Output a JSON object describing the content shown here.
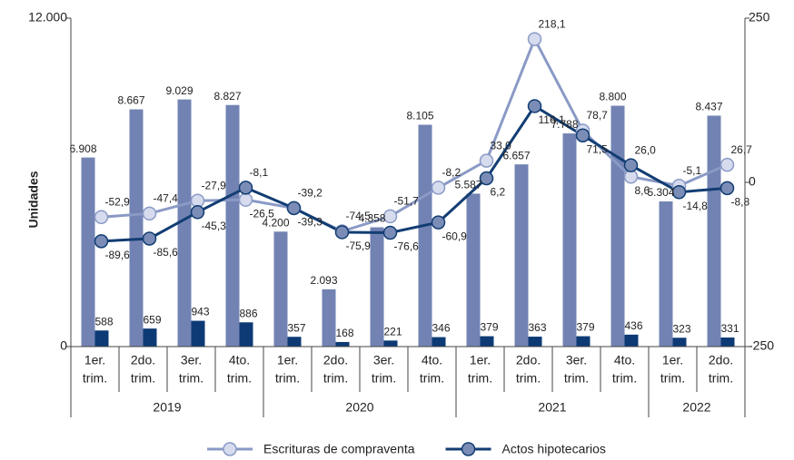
{
  "chart_data": {
    "type": "bar-line",
    "y_axis_label": "Unidades",
    "groups": [
      {
        "label": "2019",
        "categories": [
          [
            "1er.",
            "trim."
          ],
          [
            "2do.",
            "trim."
          ],
          [
            "3er.",
            "trim."
          ],
          [
            "4to.",
            "trim."
          ]
        ]
      },
      {
        "label": "2020",
        "categories": [
          [
            "1er.",
            "trim."
          ],
          [
            "2do.",
            "trim."
          ],
          [
            "3er.",
            "trim."
          ],
          [
            "4to.",
            "trim."
          ]
        ]
      },
      {
        "label": "2021",
        "categories": [
          [
            "1er.",
            "trim."
          ],
          [
            "2do.",
            "trim."
          ],
          [
            "3er.",
            "trim."
          ],
          [
            "4to.",
            "trim."
          ]
        ]
      },
      {
        "label": "2022",
        "categories": [
          [
            "1er.",
            "trim."
          ],
          [
            "2do.",
            "trim."
          ]
        ]
      }
    ],
    "ylim": [
      0,
      12000
    ],
    "yticks": [
      0,
      {
        "value": 12000,
        "label": "12.000"
      }
    ],
    "y2lim": [
      -250,
      250
    ],
    "y2ticks": [
      -250,
      0,
      250
    ],
    "bar_series": [
      {
        "color": "#7283b3",
        "values": [
          6908,
          8667,
          9029,
          8827,
          4200,
          2093,
          4358,
          8105,
          5587,
          6657,
          7788,
          8800,
          5304,
          8437
        ],
        "value_labels": [
          "6.908",
          "8.667",
          "9.029",
          "8.827",
          "4.200",
          "2.093",
          "4.358",
          "8.105",
          "5.587",
          "6.657",
          "7.788",
          "8.800",
          "5.304",
          "8.437"
        ]
      },
      {
        "color": "#0d3a75",
        "values": [
          588,
          659,
          943,
          886,
          357,
          168,
          221,
          346,
          379,
          363,
          379,
          436,
          323,
          331
        ]
      }
    ],
    "series": [
      {
        "name": "Escrituras de compraventa",
        "color": "#8a9ac6",
        "marker_color": "#d6dcee",
        "axis": "y2",
        "values": [
          -52.9,
          -47.4,
          -27.9,
          -26.5,
          -39.3,
          -74.5,
          -51.7,
          -8.2,
          33.0,
          218.1,
          78.7,
          8.6,
          -5.1,
          26.7
        ],
        "value_labels": [
          "-52,9",
          "-47,4",
          "-27,9",
          "-26,5",
          "-39,3",
          "-74,5",
          "-51,7",
          "-8,2",
          "33,0",
          "218,1",
          "78,7",
          "8,6",
          "-5,1",
          "26,7"
        ]
      },
      {
        "name": "Actos hipotecarios",
        "color": "#123d73",
        "marker_color": "#7b8db7",
        "axis": "y2",
        "values": [
          -89.6,
          -85.6,
          -45.3,
          -8.1,
          -39.2,
          -75.9,
          -76.6,
          -60.9,
          6.2,
          116.1,
          71.5,
          26.0,
          -14.8,
          -8.8
        ],
        "value_labels": [
          "-89,6",
          "-85,6",
          "-45,3",
          "-8,1",
          "-39,2",
          "-75,9",
          "-76,6",
          "-60,9",
          "6,2",
          "116,1",
          "71,5",
          "26,0",
          "-14,8",
          "-8,8"
        ]
      }
    ]
  }
}
